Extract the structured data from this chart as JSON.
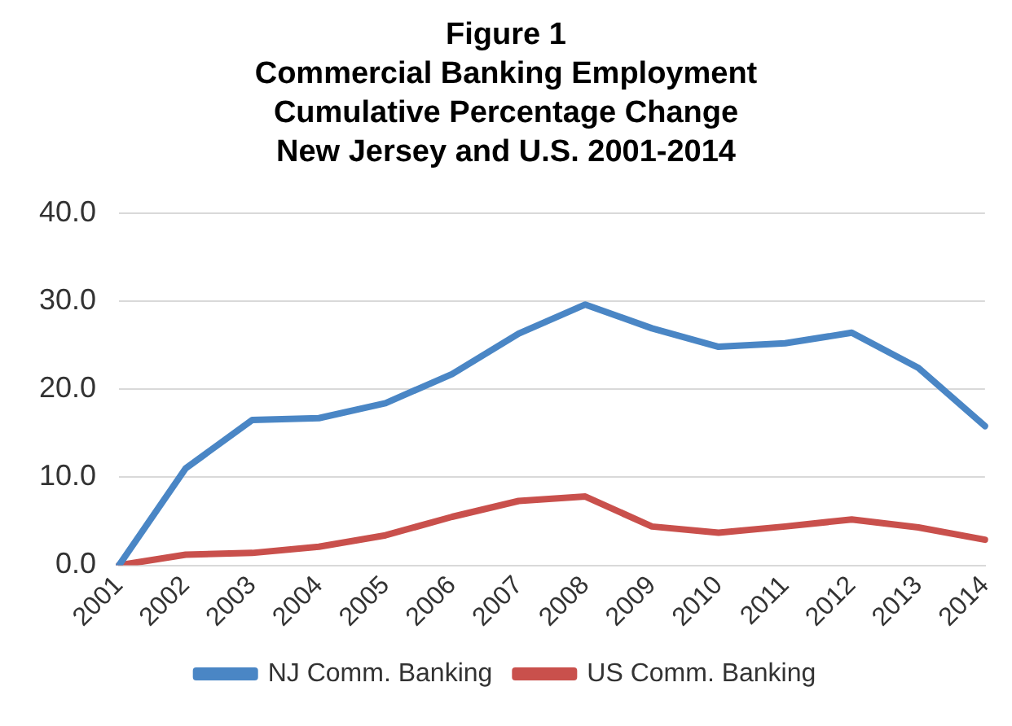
{
  "chart_data": {
    "type": "line",
    "title": "Figure 1\nCommercial Banking Employment\nCumulative Percentage Change\nNew Jersey and U.S. 2001-2014",
    "categories": [
      "2001",
      "2002",
      "2003",
      "2004",
      "2005",
      "2006",
      "2007",
      "2008",
      "2009",
      "2010",
      "2011",
      "2012",
      "2013",
      "2014"
    ],
    "series": [
      {
        "name": "NJ Comm. Banking",
        "color": "#4a86c5",
        "values": [
          0,
          11.0,
          16.5,
          16.7,
          18.4,
          21.7,
          26.3,
          29.6,
          26.9,
          24.8,
          25.2,
          26.4,
          22.4,
          15.8
        ]
      },
      {
        "name": "US Comm. Banking",
        "color": "#c9504c",
        "values": [
          0,
          1.2,
          1.4,
          2.1,
          3.4,
          5.5,
          7.3,
          7.8,
          4.4,
          3.7,
          4.4,
          5.2,
          4.3,
          2.9
        ]
      }
    ],
    "ylim": [
      0,
      40
    ],
    "yticks": [
      {
        "value": 0,
        "label": "0.0"
      },
      {
        "value": 10,
        "label": "10.0"
      },
      {
        "value": 20,
        "label": "20.0"
      },
      {
        "value": 30,
        "label": "30.0"
      },
      {
        "value": 40,
        "label": "40.0"
      }
    ],
    "grid": "y",
    "legend": "bottom",
    "marker": "none",
    "line_style": "solid"
  }
}
